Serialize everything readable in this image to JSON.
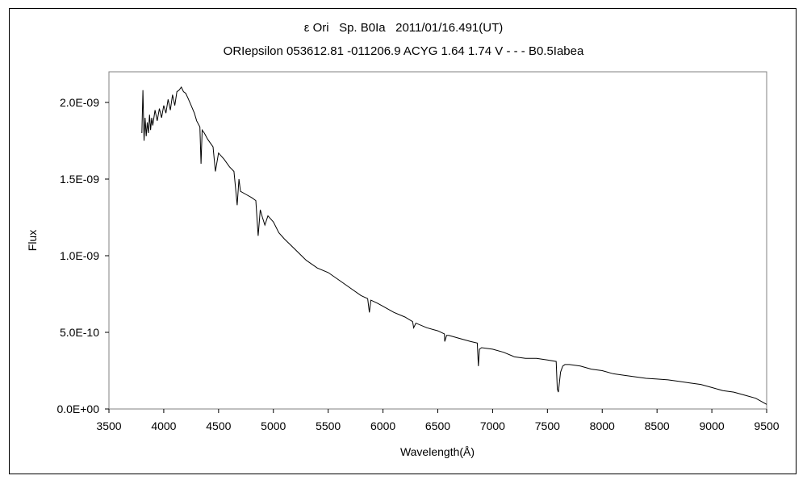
{
  "chart_data": {
    "type": "line",
    "title": "ε Ori   Sp. B0Ia   2011/01/16.491(UT)",
    "subtitle": "ORIepsilon 053612.81 -011206.9 ACYG 1.64 1.74 V - - - B0.5Iabea",
    "xlabel": "Wavelength(Å)",
    "ylabel": "Flux",
    "xlim": [
      3500,
      9500
    ],
    "ylim": [
      0,
      2.2e-09
    ],
    "x_ticks": [
      3500,
      4000,
      4500,
      5000,
      5500,
      6000,
      6500,
      7000,
      7500,
      8000,
      8500,
      9000,
      9500
    ],
    "x_tick_labels": [
      "3500",
      "4000",
      "4500",
      "5000",
      "5500",
      "6000",
      "6500",
      "7000",
      "7500",
      "8000",
      "8500",
      "9000",
      "9500"
    ],
    "y_ticks": [
      0,
      5e-10,
      1e-09,
      1.5e-09,
      2e-09
    ],
    "y_tick_labels": [
      "0.0E+00",
      "5.0E-10",
      "1.0E-09",
      "1.5E-09",
      "2.0E-09"
    ],
    "grid": false,
    "legend": "none",
    "line_color": "#000000",
    "series": [
      {
        "x": [
          3800,
          3810,
          3820,
          3830,
          3840,
          3850,
          3860,
          3870,
          3880,
          3890,
          3900,
          3920,
          3940,
          3960,
          3980,
          4000,
          4020,
          4040,
          4060,
          4080,
          4101,
          4120,
          4140,
          4160,
          4180,
          4200,
          4220,
          4250,
          4280,
          4300,
          4330,
          4340,
          4350,
          4370,
          4400,
          4450,
          4471,
          4500,
          4550,
          4600,
          4640,
          4650,
          4670,
          4686,
          4700,
          4750,
          4800,
          4840,
          4861,
          4880,
          4900,
          4922,
          4950,
          5000,
          5050,
          5100,
          5200,
          5300,
          5400,
          5500,
          5600,
          5700,
          5800,
          5860,
          5876,
          5890,
          5950,
          6000,
          6100,
          6200,
          6270,
          6280,
          6300,
          6400,
          6500,
          6560,
          6563,
          6580,
          6600,
          6700,
          6800,
          6860,
          6870,
          6880,
          6900,
          7000,
          7100,
          7200,
          7300,
          7400,
          7500,
          7580,
          7590,
          7600,
          7620,
          7640,
          7660,
          7700,
          7800,
          7900,
          8000,
          8100,
          8200,
          8300,
          8400,
          8500,
          8600,
          8700,
          8800,
          8900,
          9000,
          9100,
          9200,
          9300,
          9400,
          9500
        ],
        "y": [
          1.8e-09,
          2.08e-09,
          1.75e-09,
          1.9e-09,
          1.78e-09,
          1.87e-09,
          1.8e-09,
          1.92e-09,
          1.82e-09,
          1.9e-09,
          1.85e-09,
          1.95e-09,
          1.88e-09,
          1.96e-09,
          1.9e-09,
          1.98e-09,
          1.93e-09,
          2.02e-09,
          1.95e-09,
          2.05e-09,
          1.98e-09,
          2.07e-09,
          2.08e-09,
          2.1e-09,
          2.07e-09,
          2.06e-09,
          2.03e-09,
          1.98e-09,
          1.93e-09,
          1.88e-09,
          1.84e-09,
          1.6e-09,
          1.82e-09,
          1.8e-09,
          1.76e-09,
          1.71e-09,
          1.55e-09,
          1.67e-09,
          1.63e-09,
          1.58e-09,
          1.55e-09,
          1.48e-09,
          1.33e-09,
          1.5e-09,
          1.42e-09,
          1.4e-09,
          1.38e-09,
          1.36e-09,
          1.13e-09,
          1.3e-09,
          1.25e-09,
          1.2e-09,
          1.26e-09,
          1.22e-09,
          1.15e-09,
          1.11e-09,
          1.04e-09,
          9.7e-10,
          9.2e-10,
          8.9e-10,
          8.4e-10,
          7.9e-10,
          7.4e-10,
          7.2e-10,
          6.3e-10,
          7.1e-10,
          6.9e-10,
          6.7e-10,
          6.3e-10,
          6e-10,
          5.7e-10,
          5.3e-10,
          5.6e-10,
          5.3e-10,
          5.1e-10,
          4.9e-10,
          4.4e-10,
          4.8e-10,
          4.8e-10,
          4.6e-10,
          4.4e-10,
          4.3e-10,
          2.8e-10,
          3.9e-10,
          4e-10,
          3.9e-10,
          3.7e-10,
          3.4e-10,
          3.3e-10,
          3.3e-10,
          3.2e-10,
          3.1e-10,
          1.3e-10,
          1.1e-10,
          2.4e-10,
          2.8e-10,
          2.9e-10,
          2.9e-10,
          2.8e-10,
          2.6e-10,
          2.5e-10,
          2.3e-10,
          2.2e-10,
          2.1e-10,
          2e-10,
          1.95e-10,
          1.9e-10,
          1.8e-10,
          1.7e-10,
          1.6e-10,
          1.4e-10,
          1.2e-10,
          1.1e-10,
          9e-11,
          7e-11,
          3e-11
        ]
      }
    ]
  }
}
